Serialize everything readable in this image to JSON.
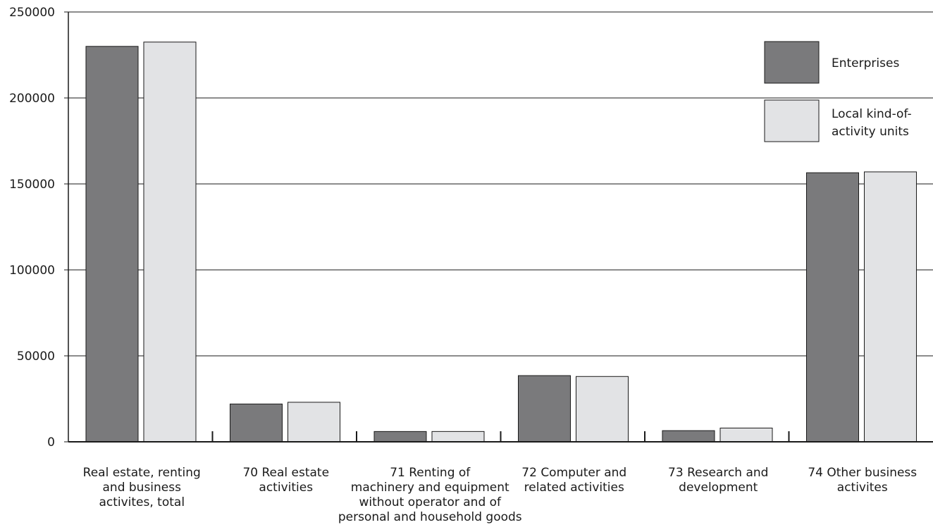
{
  "chart_data": {
    "type": "bar",
    "categories": [
      [
        "Real estate, renting",
        "and business",
        "activites, total"
      ],
      [
        "70 Real estate",
        "activities"
      ],
      [
        "71 Renting of",
        "machinery and equipment",
        "without operator and of",
        "personal and household goods"
      ],
      [
        "72 Computer and",
        "related activities"
      ],
      [
        "73 Research and",
        "development"
      ],
      [
        "74 Other business",
        "activites"
      ]
    ],
    "series": [
      {
        "name": "Enterprises",
        "values": [
          230000,
          22000,
          6000,
          38500,
          6500,
          156500
        ]
      },
      {
        "name": "Local kind-of-activity units",
        "legend_lines": [
          "Local kind-of-",
          "activity units"
        ],
        "values": [
          232500,
          23000,
          6000,
          38000,
          8000,
          157000
        ]
      }
    ],
    "ylim": [
      0,
      250000
    ],
    "yticks": [
      0,
      50000,
      100000,
      150000,
      200000,
      250000
    ],
    "grid": true,
    "legend_position": "top-right",
    "colors": {
      "series": [
        "#7a7a7c",
        "#e2e3e5"
      ],
      "grid": "#1a1a1a",
      "axis": "#1a1a1a"
    }
  }
}
